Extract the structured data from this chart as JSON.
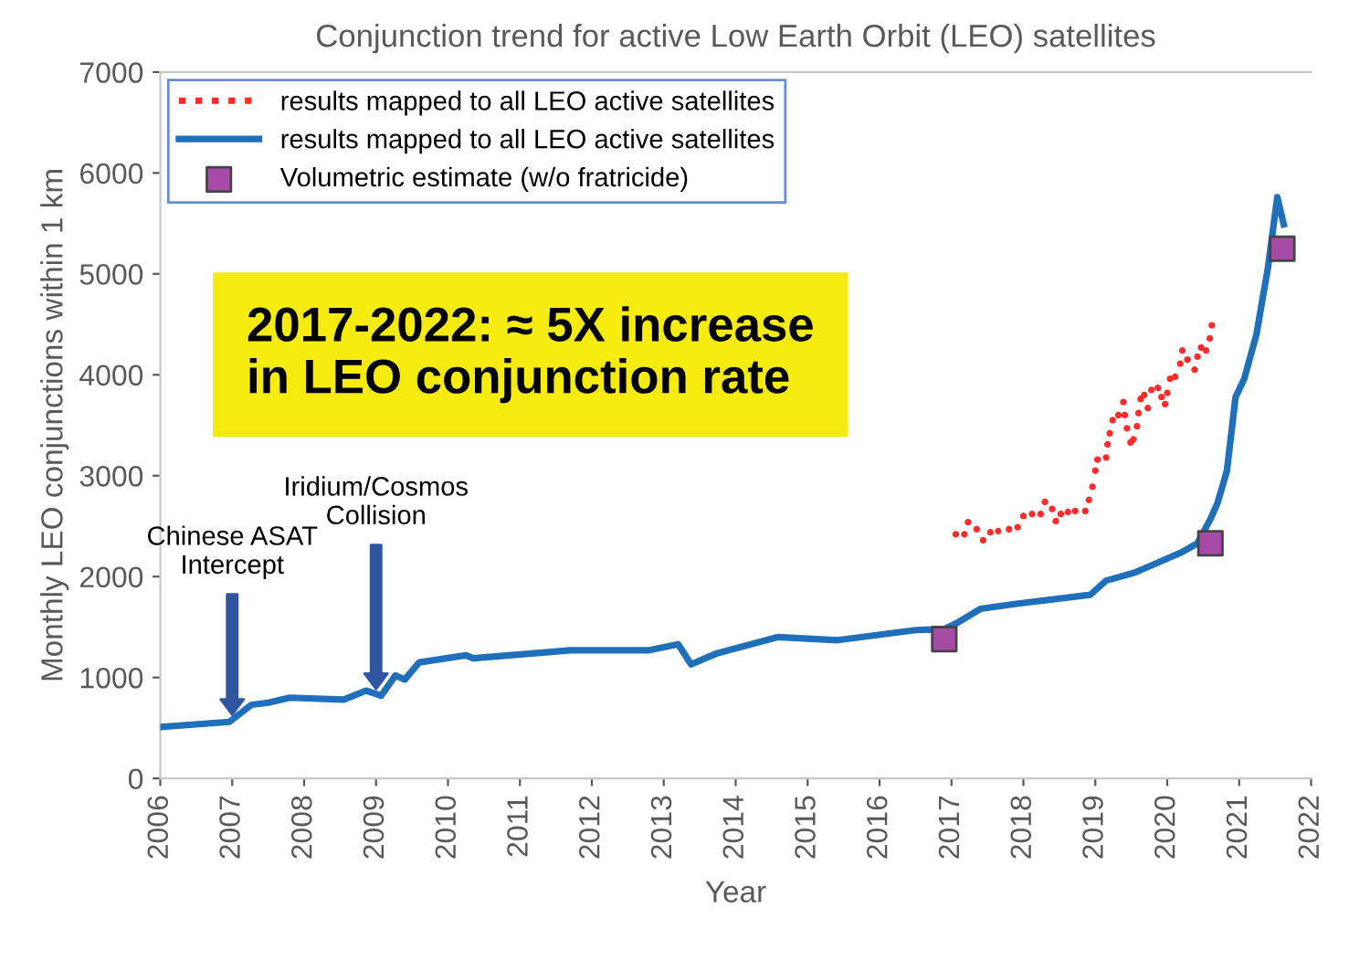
{
  "chart_data": {
    "type": "line",
    "title": "Conjunction trend for active Low Earth Orbit (LEO) satellites",
    "xlabel": "Year",
    "ylabel": "Monthly LEO conjunctions within 1 km",
    "xlim": [
      2006,
      2022
    ],
    "xticks": [
      2006,
      2007,
      2008,
      2009,
      2010,
      2011,
      2012,
      2013,
      2014,
      2015,
      2016,
      2017,
      2018,
      2019,
      2020,
      2021,
      2022
    ],
    "ylim": [
      0,
      7000
    ],
    "yticks": [
      0,
      1000,
      2000,
      3000,
      4000,
      5000,
      6000,
      7000
    ],
    "grid": false,
    "legend": "top left",
    "series": [
      {
        "name": "results mapped to all LEO active satellites",
        "type": "scatter",
        "marker": "circle",
        "color": "#ff2a2a",
        "x": [
          2017.06,
          2017.18,
          2017.23,
          2017.35,
          2017.44,
          2017.54,
          2017.65,
          2017.8,
          2017.92,
          2018.0,
          2018.12,
          2018.24,
          2018.3,
          2018.4,
          2018.45,
          2018.52,
          2018.62,
          2018.72,
          2018.86,
          2018.91,
          2018.96,
          2019.0,
          2019.03,
          2019.15,
          2019.17,
          2019.2,
          2019.24,
          2019.32,
          2019.39,
          2019.41,
          2019.44,
          2019.49,
          2019.53,
          2019.58,
          2019.6,
          2019.63,
          2019.68,
          2019.73,
          2019.78,
          2019.87,
          2019.92,
          2019.97,
          2020.0,
          2020.04,
          2020.11,
          2020.18,
          2020.21,
          2020.28,
          2020.38,
          2020.42,
          2020.47,
          2020.54,
          2020.59,
          2020.62
        ],
        "values": [
          2420,
          2420,
          2540,
          2470,
          2360,
          2440,
          2450,
          2470,
          2490,
          2600,
          2620,
          2620,
          2740,
          2670,
          2550,
          2620,
          2640,
          2650,
          2650,
          2760,
          2890,
          3050,
          3160,
          3180,
          3310,
          3420,
          3550,
          3600,
          3730,
          3600,
          3470,
          3330,
          3360,
          3490,
          3620,
          3760,
          3800,
          3670,
          3850,
          3870,
          3780,
          3710,
          3820,
          3960,
          3980,
          4110,
          4240,
          4150,
          4050,
          4180,
          4270,
          4240,
          4360,
          4490
        ]
      },
      {
        "name": "results mapped to all LEO active satellites",
        "line_style": "solid",
        "color": "#1f6fba",
        "x": [
          2006.0,
          2006.96,
          2007.27,
          2007.5,
          2007.8,
          2008.55,
          2008.86,
          2009.07,
          2009.27,
          2009.4,
          2009.6,
          2010.25,
          2010.35,
          2011.7,
          2012.8,
          2013.2,
          2013.38,
          2013.74,
          2014.58,
          2015.42,
          2016.5,
          2016.9,
          2017.1,
          2017.4,
          2017.9,
          2018.93,
          2019.15,
          2019.55,
          2020.2,
          2020.42,
          2020.6,
          2020.7,
          2020.83,
          2020.95,
          2021.07,
          2021.24,
          2021.4,
          2021.53,
          2021.62
        ],
        "values": [
          510,
          560,
          730,
          750,
          800,
          780,
          870,
          820,
          1020,
          980,
          1150,
          1220,
          1190,
          1270,
          1270,
          1330,
          1130,
          1240,
          1400,
          1370,
          1470,
          1480,
          1550,
          1680,
          1730,
          1820,
          1960,
          2040,
          2240,
          2330,
          2570,
          2730,
          3050,
          3780,
          3960,
          4400,
          5060,
          5760,
          5490
        ]
      },
      {
        "name": "Volumetric estimate (w/o fratricide)",
        "type": "scatter",
        "marker": "square",
        "color": "#a64ca6",
        "x": [
          2016.9,
          2020.6,
          2021.6
        ],
        "values": [
          1380,
          2330,
          5250
        ]
      }
    ],
    "annotations": [
      "Chinese ASAT\nIntercept",
      "Iridium/Cosmos\nCollision",
      "2017-2022: ≈ 5X increase\nin LEO conjunction rate"
    ]
  }
}
